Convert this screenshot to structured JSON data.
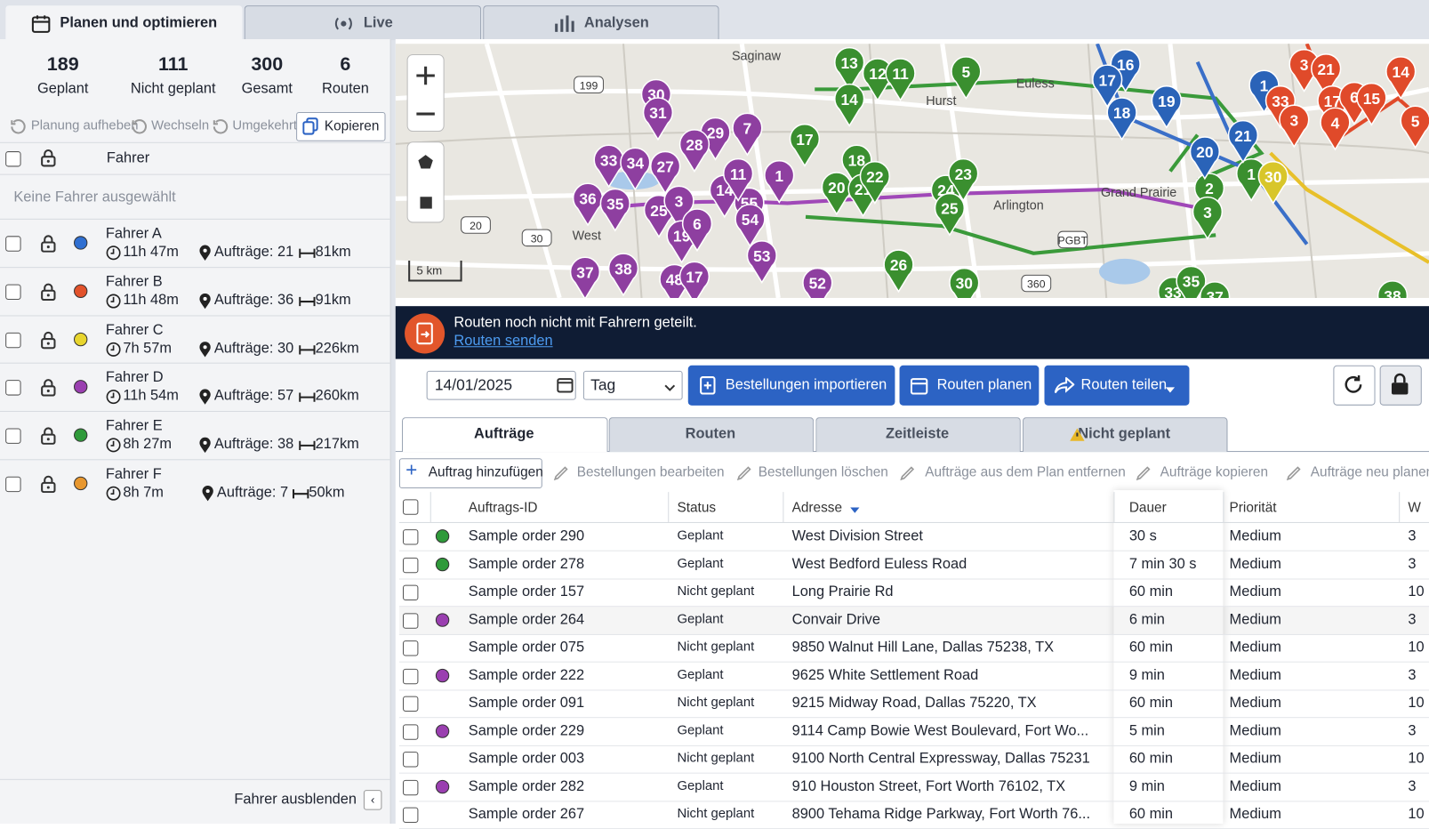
{
  "top_tabs": [
    "Planen und optimieren",
    "Live",
    "Analysen"
  ],
  "stats": [
    {
      "value": "189",
      "label": "Geplant"
    },
    {
      "value": "111",
      "label": "Nicht geplant"
    },
    {
      "value": "300",
      "label": "Gesamt"
    },
    {
      "value": "6",
      "label": "Routen"
    }
  ],
  "left_tools": [
    "Planung aufheben",
    "Wechseln",
    "Umgekehrt",
    "Kopieren"
  ],
  "driver_header": "Fahrer",
  "no_driver": "Keine Fahrer ausgewählt",
  "drivers": [
    {
      "name": "Fahrer A",
      "color": "#2f6fd1",
      "time": "11h 47m",
      "orders": "Aufträge: 21",
      "distance": "81km"
    },
    {
      "name": "Fahrer B",
      "color": "#e2522b",
      "time": "11h 48m",
      "orders": "Aufträge: 36",
      "distance": "91km"
    },
    {
      "name": "Fahrer C",
      "color": "#e8d52e",
      "time": "7h 57m",
      "orders": "Aufträge: 30",
      "distance": "226km"
    },
    {
      "name": "Fahrer D",
      "color": "#9a3fb0",
      "time": "11h 54m",
      "orders": "Aufträge: 57",
      "distance": "260km"
    },
    {
      "name": "Fahrer E",
      "color": "#2f9a3a",
      "time": "8h 27m",
      "orders": "Aufträge: 38",
      "distance": "217km"
    },
    {
      "name": "Fahrer F",
      "color": "#e8972e",
      "time": "8h 7m",
      "orders": "Aufträge: 7",
      "distance": "50km"
    }
  ],
  "hide_drivers": "Fahrer ausblenden",
  "map": {
    "places": [
      "Saginaw",
      "Euless",
      "Hurst",
      "Arlington",
      "Grand Prairie",
      "West"
    ],
    "shields": [
      "199",
      "20",
      "30",
      "360",
      "PGBT"
    ],
    "scale": "5 km",
    "marker_groups": [
      {
        "color": "#8e3fa0",
        "labels": [
          "30",
          "31",
          "29",
          "7",
          "28",
          "33",
          "34",
          "27",
          "36",
          "35",
          "25",
          "3",
          "19",
          "6",
          "14",
          "55",
          "54",
          "53",
          "37",
          "38",
          "48",
          "17",
          "52",
          "11",
          "1"
        ]
      },
      {
        "color": "#3a8f2f",
        "labels": [
          "13",
          "12",
          "11",
          "5",
          "14",
          "17",
          "18",
          "20",
          "21",
          "22",
          "24",
          "23",
          "25",
          "26",
          "30",
          "2",
          "3",
          "33",
          "35",
          "37",
          "38",
          "1"
        ]
      },
      {
        "color": "#2a63b8",
        "labels": [
          "16",
          "17",
          "18",
          "19",
          "21",
          "20",
          "1"
        ]
      },
      {
        "color": "#e04a2a",
        "labels": [
          "3",
          "21",
          "14",
          "33",
          "17",
          "6",
          "15",
          "4",
          "3",
          "5"
        ]
      },
      {
        "color": "#d8c62a",
        "labels": [
          "30"
        ]
      }
    ]
  },
  "banner": {
    "message": "Routen noch nicht mit Fahrern geteilt.",
    "link": "Routen senden"
  },
  "toolbar": {
    "date": "14/01/2025",
    "period": "Tag",
    "buttons": [
      "Bestellungen importieren",
      "Routen planen",
      "Routen teilen"
    ]
  },
  "tabs": [
    "Aufträge",
    "Routen",
    "Zeitleiste",
    "Nicht geplant"
  ],
  "actions": [
    "Auftrag hinzufügen",
    "Bestellungen bearbeiten",
    "Bestellungen löschen",
    "Aufträge aus dem Plan entfernen",
    "Aufträge kopieren",
    "Aufträge neu planen"
  ],
  "table": {
    "columns": [
      "Auftrags-ID",
      "Status",
      "Adresse",
      "Dauer",
      "Priorität",
      "W"
    ],
    "rows": [
      {
        "dot": "#2f9a3a",
        "cells": [
          "Sample order 290",
          "Geplant",
          "West Division Street",
          "30 s",
          "Medium",
          "3"
        ]
      },
      {
        "dot": "#2f9a3a",
        "cells": [
          "Sample order 278",
          "Geplant",
          "West Bedford Euless Road",
          "7 min 30 s",
          "Medium",
          "3"
        ]
      },
      {
        "dot": null,
        "cells": [
          "Sample order 157",
          "Nicht geplant",
          "Long Prairie Rd",
          "60 min",
          "Medium",
          "10"
        ]
      },
      {
        "dot": "#9a3fb0",
        "cells": [
          "Sample order 264",
          "Geplant",
          "Convair Drive",
          "6 min",
          "Medium",
          "3"
        ]
      },
      {
        "dot": null,
        "cells": [
          "Sample order 075",
          "Nicht geplant",
          "9850 Walnut Hill Lane, Dallas 75238, TX",
          "60 min",
          "Medium",
          "10"
        ]
      },
      {
        "dot": "#9a3fb0",
        "cells": [
          "Sample order 222",
          "Geplant",
          "9625 White Settlement Road",
          "9 min",
          "Medium",
          "3"
        ]
      },
      {
        "dot": null,
        "cells": [
          "Sample order 091",
          "Nicht geplant",
          "9215 Midway Road, Dallas 75220, TX",
          "60 min",
          "Medium",
          "10"
        ]
      },
      {
        "dot": "#9a3fb0",
        "cells": [
          "Sample order 229",
          "Geplant",
          "9114 Camp Bowie West Boulevard, Fort Wo...",
          "5 min",
          "Medium",
          "3"
        ]
      },
      {
        "dot": null,
        "cells": [
          "Sample order 003",
          "Nicht geplant",
          "9100 North Central Expressway, Dallas 75231",
          "60 min",
          "Medium",
          "10"
        ]
      },
      {
        "dot": "#9a3fb0",
        "cells": [
          "Sample order 282",
          "Geplant",
          "910 Houston Street, Fort Worth 76102, TX",
          "9 min",
          "Medium",
          "3"
        ]
      },
      {
        "dot": null,
        "cells": [
          "Sample order 267",
          "Nicht geplant",
          "8900 Tehama Ridge Parkway, Fort Worth 76...",
          "60 min",
          "Medium",
          "10"
        ]
      }
    ]
  }
}
